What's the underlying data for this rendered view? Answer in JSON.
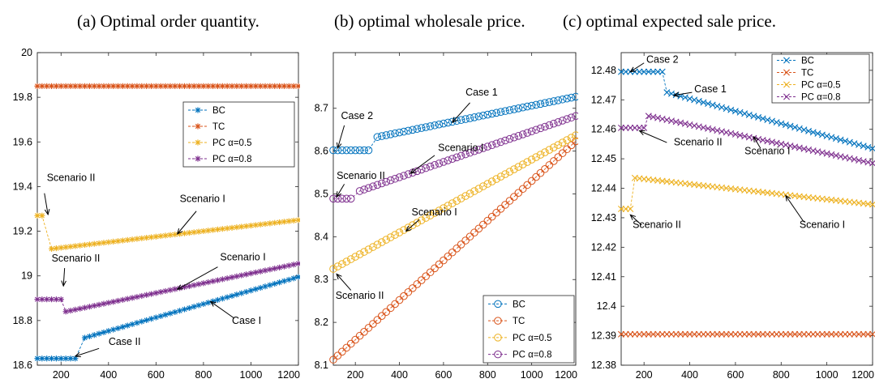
{
  "captions": {
    "a": "(a) Optimal order quantity.",
    "b": "(b) optimal wholesale price.",
    "c": "(c) optimal expected sale price."
  },
  "colors": {
    "BC": "#0072bd",
    "TC": "#d95319",
    "PC05": "#edb120",
    "PC08": "#7e2f8e"
  },
  "chart_data": [
    {
      "id": "a",
      "type": "line",
      "title": "(a) Optimal order quantity.",
      "xlabel": "",
      "ylabel": "",
      "xlim": [
        100,
        1200
      ],
      "ylim": [
        18.6,
        20
      ],
      "xticks": [
        200,
        400,
        600,
        800,
        1000,
        1200
      ],
      "yticks": [
        18.6,
        18.8,
        19,
        19.2,
        19.4,
        19.6,
        19.8,
        20
      ],
      "ytick_labels": [
        "18.6",
        "18.8",
        "19",
        "19.2",
        "19.4",
        "19.6",
        "19.8",
        "20"
      ],
      "marker": "asterisk",
      "grid": false,
      "legend_position": "upper-right",
      "legend": [
        "BC",
        "TC",
        "PC α=0.5",
        "PC α=0.8"
      ],
      "series": [
        {
          "name": "BC",
          "color_key": "BC",
          "segments": [
            {
              "x_start": 100,
              "x_end": 270,
              "y_start": 18.63,
              "y_end": 18.63
            },
            {
              "x_start": 290,
              "x_end": 1200,
              "y_start": 18.72,
              "y_end": 18.995
            }
          ]
        },
        {
          "name": "TC",
          "color_key": "TC",
          "segments": [
            {
              "x_start": 100,
              "x_end": 1200,
              "y_start": 19.85,
              "y_end": 19.85
            }
          ]
        },
        {
          "name": "PC α=0.5",
          "color_key": "PC05",
          "segments": [
            {
              "x_start": 100,
              "x_end": 130,
              "y_start": 19.27,
              "y_end": 19.27
            },
            {
              "x_start": 150,
              "x_end": 1200,
              "y_start": 19.12,
              "y_end": 19.25
            }
          ]
        },
        {
          "name": "PC α=0.8",
          "color_key": "PC08",
          "segments": [
            {
              "x_start": 100,
              "x_end": 200,
              "y_start": 18.895,
              "y_end": 18.895
            },
            {
              "x_start": 220,
              "x_end": 1200,
              "y_start": 18.84,
              "y_end": 19.055
            }
          ]
        }
      ],
      "annotations": [
        {
          "text": "Scenario II",
          "tx": 140,
          "ty": 19.425,
          "ax": 145,
          "ay": 19.275,
          "tox": 130,
          "toy": 19.37
        },
        {
          "text": "Scenario I",
          "tx": 700,
          "ty": 19.33,
          "ax": 690,
          "ay": 19.188,
          "tox": 770,
          "toy": 19.29
        },
        {
          "text": "Scenario II",
          "tx": 160,
          "ty": 19.065,
          "ax": 210,
          "ay": 18.955,
          "tox": 215,
          "toy": 19.035
        },
        {
          "text": "Scenario I",
          "tx": 870,
          "ty": 19.07,
          "ax": 690,
          "ay": 18.94,
          "tox": 860,
          "toy": 19.04
        },
        {
          "text": "Case I",
          "tx": 920,
          "ty": 18.785,
          "ax": 830,
          "ay": 18.885,
          "tox": 930,
          "toy": 18.81
        },
        {
          "text": "Case II",
          "tx": 400,
          "ty": 18.69,
          "ax": 260,
          "ay": 18.64,
          "tox": 360,
          "toy": 18.675
        }
      ]
    },
    {
      "id": "b",
      "type": "line",
      "title": "(b) optimal wholesale price.",
      "xlabel": "",
      "ylabel": "",
      "xlim": [
        100,
        1200
      ],
      "ylim": [
        8.1,
        8.83
      ],
      "xticks": [
        200,
        400,
        600,
        800,
        1000,
        1200
      ],
      "yticks": [
        8.1,
        8.2,
        8.3,
        8.4,
        8.5,
        8.6,
        8.7
      ],
      "ytick_labels": [
        "8.1",
        "8.2",
        "8.3",
        "8.4",
        "8.5",
        "8.6",
        "8.7"
      ],
      "marker": "circle",
      "grid": false,
      "legend_position": "lower-right",
      "legend": [
        "BC",
        "TC",
        "PC α=0.5",
        "PC α=0.8"
      ],
      "series": [
        {
          "name": "BC",
          "color_key": "BC",
          "segments": [
            {
              "x_start": 100,
              "x_end": 270,
              "y_start": 8.602,
              "y_end": 8.602
            },
            {
              "x_start": 290,
              "x_end": 1200,
              "y_start": 8.632,
              "y_end": 8.727
            }
          ]
        },
        {
          "name": "TC",
          "color_key": "TC",
          "segments": [
            {
              "x_start": 100,
              "x_end": 1200,
              "y_start": 8.113,
              "y_end": 8.623
            }
          ]
        },
        {
          "name": "PC α=0.5",
          "color_key": "PC05",
          "segments": [
            {
              "x_start": 100,
              "x_end": 1200,
              "y_start": 8.325,
              "y_end": 8.637
            }
          ]
        },
        {
          "name": "PC α=0.8",
          "color_key": "PC08",
          "segments": [
            {
              "x_start": 100,
              "x_end": 190,
              "y_start": 8.489,
              "y_end": 8.489
            },
            {
              "x_start": 210,
              "x_end": 1200,
              "y_start": 8.505,
              "y_end": 8.682
            }
          ]
        }
      ],
      "annotations": [
        {
          "text": "Case 1",
          "tx": 700,
          "ty": 8.73,
          "ax": 640,
          "ay": 8.667,
          "tox": 720,
          "toy": 8.713
        },
        {
          "text": "Case 2",
          "tx": 135,
          "ty": 8.675,
          "ax": 120,
          "ay": 8.607,
          "tox": 150,
          "toy": 8.66
        },
        {
          "text": "Scenario I",
          "tx": 575,
          "ty": 8.6,
          "ax": 450,
          "ay": 8.548,
          "tox": 560,
          "toy": 8.59
        },
        {
          "text": "Scenario II",
          "tx": 115,
          "ty": 8.535,
          "ax": 115,
          "ay": 8.493,
          "tox": 150,
          "toy": 8.523
        },
        {
          "text": "Scenario I",
          "tx": 455,
          "ty": 8.45,
          "ax": 430,
          "ay": 8.413,
          "tox": 490,
          "toy": 8.44
        },
        {
          "text": "Scenario II",
          "tx": 110,
          "ty": 8.255,
          "ax": 115,
          "ay": 8.313,
          "tox": 180,
          "toy": 8.275
        }
      ]
    },
    {
      "id": "c",
      "type": "line",
      "title": "(c) optimal expected sale price.",
      "xlabel": "",
      "ylabel": "",
      "xlim": [
        100,
        1200
      ],
      "ylim": [
        12.38,
        12.486
      ],
      "xticks": [
        200,
        400,
        600,
        800,
        1000,
        1200
      ],
      "yticks": [
        12.38,
        12.39,
        12.4,
        12.41,
        12.42,
        12.43,
        12.44,
        12.45,
        12.46,
        12.47,
        12.48
      ],
      "ytick_labels": [
        "12.38",
        "12.39",
        "12.4",
        "12.41",
        "12.42",
        "12.43",
        "12.44",
        "12.45",
        "12.46",
        "12.47",
        "12.48"
      ],
      "marker": "cross",
      "grid": false,
      "legend_position": "upper-right",
      "legend": [
        "BC",
        "TC",
        "PC α=0.5",
        "PC α=0.8"
      ],
      "series": [
        {
          "name": "BC",
          "color_key": "BC",
          "segments": [
            {
              "x_start": 100,
              "x_end": 280,
              "y_start": 12.4795,
              "y_end": 12.4795
            },
            {
              "x_start": 300,
              "x_end": 1200,
              "y_start": 12.4725,
              "y_end": 12.4535
            }
          ]
        },
        {
          "name": "TC",
          "color_key": "TC",
          "segments": [
            {
              "x_start": 100,
              "x_end": 1200,
              "y_start": 12.3905,
              "y_end": 12.3905
            }
          ]
        },
        {
          "name": "PC α=0.5",
          "color_key": "PC05",
          "segments": [
            {
              "x_start": 100,
              "x_end": 140,
              "y_start": 12.433,
              "y_end": 12.433
            },
            {
              "x_start": 160,
              "x_end": 1200,
              "y_start": 12.4435,
              "y_end": 12.4345
            }
          ]
        },
        {
          "name": "PC α=0.8",
          "color_key": "PC08",
          "segments": [
            {
              "x_start": 100,
              "x_end": 200,
              "y_start": 12.4605,
              "y_end": 12.4605
            },
            {
              "x_start": 220,
              "x_end": 1200,
              "y_start": 12.4645,
              "y_end": 12.4485
            }
          ]
        }
      ],
      "annotations": [
        {
          "text": "Case 2",
          "tx": 210,
          "ty": 12.4825,
          "ax": 140,
          "ay": 12.4795,
          "tox": 200,
          "toy": 12.4825
        },
        {
          "text": "Case 1",
          "tx": 420,
          "ty": 12.4725,
          "ax": 330,
          "ay": 12.4715,
          "tox": 410,
          "toy": 12.4725
        },
        {
          "text": "Scenario II",
          "tx": 330,
          "ty": 12.4545,
          "ax": 180,
          "ay": 12.4595,
          "tox": 300,
          "toy": 12.4555
        },
        {
          "text": "Scenario I",
          "tx": 640,
          "ty": 12.4515,
          "ax": 680,
          "ay": 12.4575,
          "tox": 710,
          "toy": 12.4535
        },
        {
          "text": "Scenario II",
          "tx": 150,
          "ty": 12.4265,
          "ax": 140,
          "ay": 12.431,
          "tox": 190,
          "toy": 12.4275
        },
        {
          "text": "Scenario I",
          "tx": 880,
          "ty": 12.4265,
          "ax": 820,
          "ay": 12.4375,
          "tox": 900,
          "toy": 12.4285
        }
      ]
    }
  ]
}
